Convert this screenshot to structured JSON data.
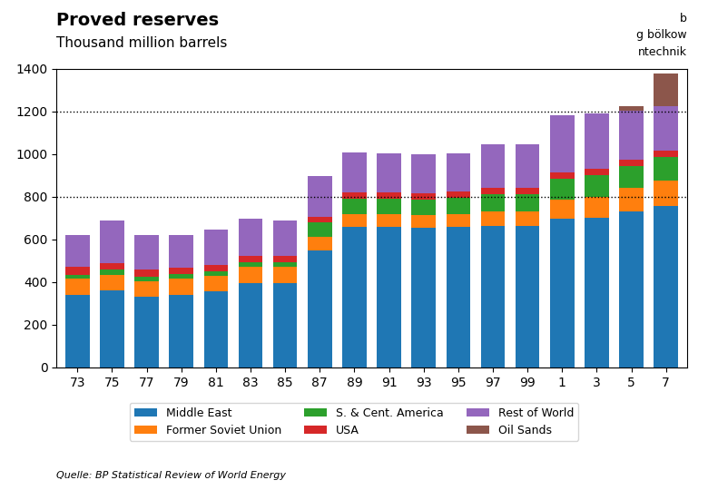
{
  "chart_data": {
    "type": "bar",
    "stacked": true,
    "title": "Proved reserves",
    "subtitle": "Thousand million barrels",
    "source": "Quelle: BP Statistical Review of World Energy",
    "annotations": [
      "b",
      "g bölkow",
      "ntechnik"
    ],
    "categories": [
      "73",
      "75",
      "77",
      "79",
      "81",
      "83",
      "85",
      "87",
      "89",
      "91",
      "93",
      "95",
      "97",
      "99",
      "1",
      "3",
      "5",
      "7"
    ],
    "series": [
      {
        "name": "Middle East",
        "values": [
          340,
          360,
          330,
          340,
          355,
          395,
          395,
          550,
          660,
          660,
          655,
          660,
          665,
          665,
          695,
          700,
          730,
          755
        ]
      },
      {
        "name": "Former Soviet Union",
        "values": [
          75,
          75,
          75,
          75,
          75,
          75,
          75,
          60,
          57,
          57,
          57,
          57,
          65,
          65,
          90,
          100,
          110,
          120
        ]
      },
      {
        "name": "S. & Cent. America",
        "values": [
          20,
          22,
          22,
          22,
          22,
          23,
          24,
          68,
          75,
          75,
          76,
          76,
          80,
          80,
          100,
          103,
          103,
          110
        ]
      },
      {
        "name": "USA",
        "values": [
          35,
          30,
          30,
          30,
          30,
          28,
          28,
          28,
          30,
          30,
          30,
          30,
          30,
          30,
          30,
          29,
          29,
          29
        ]
      },
      {
        "name": "Rest of World",
        "values": [
          150,
          200,
          165,
          155,
          165,
          175,
          165,
          190,
          185,
          180,
          180,
          180,
          205,
          205,
          265,
          260,
          230,
          210
        ]
      },
      {
        "name": "Oil Sands",
        "values": [
          0,
          0,
          0,
          0,
          0,
          0,
          0,
          0,
          0,
          0,
          0,
          0,
          0,
          0,
          0,
          0,
          20,
          155
        ]
      }
    ],
    "reference_lines": [
      800,
      1200
    ],
    "ylim": [
      0,
      1400
    ],
    "yticks": [
      0,
      200,
      400,
      600,
      800,
      1000,
      1200,
      1400
    ],
    "grid": false,
    "legend": "upper center"
  }
}
